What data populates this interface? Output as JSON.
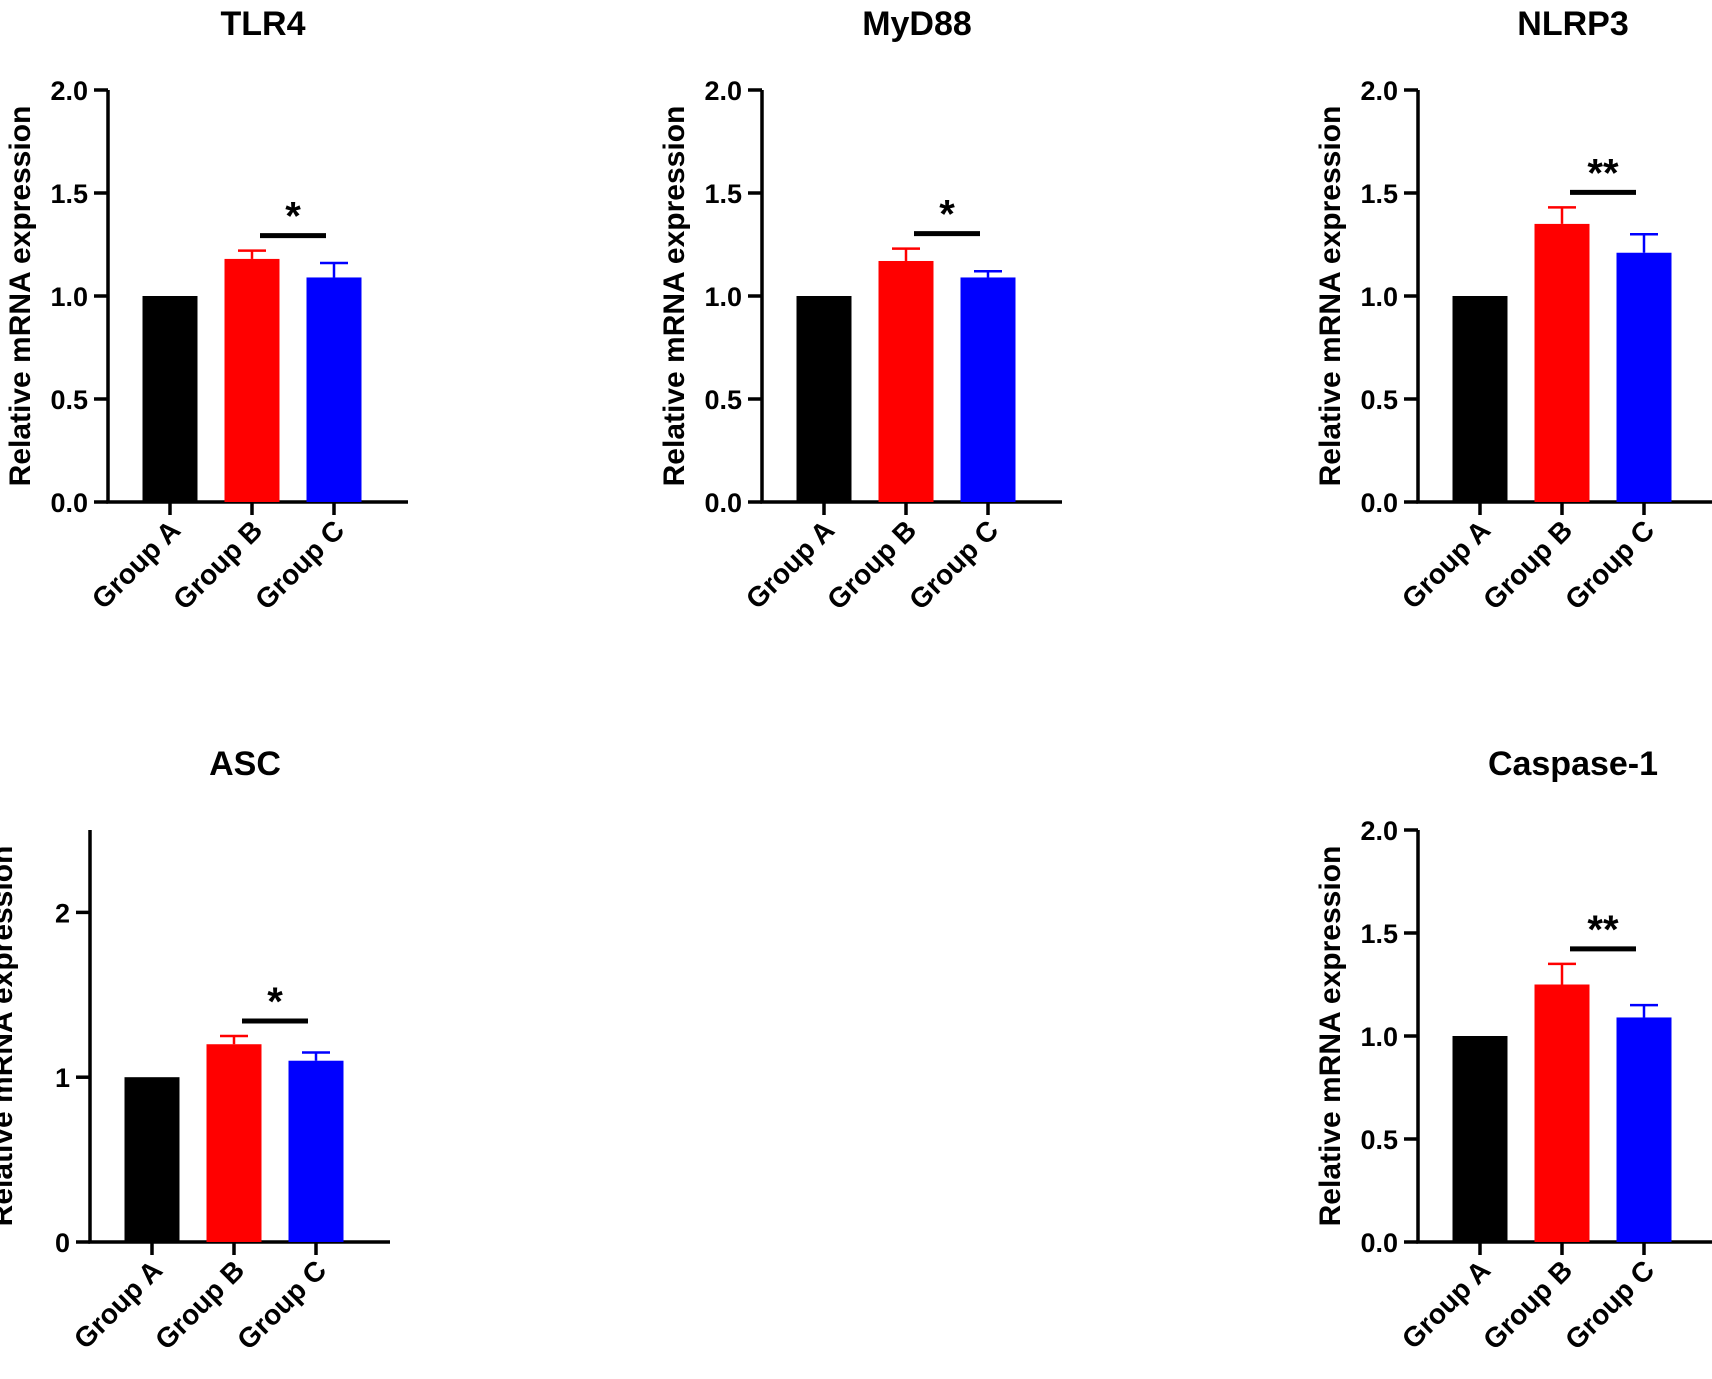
{
  "figure": {
    "background": "#ffffff",
    "axis_color": "#000000"
  },
  "chart_data": [
    {
      "type": "bar",
      "title": "TLR4",
      "ylabel": "Relative mRNA expression",
      "xlabel": "",
      "ylim": [
        0,
        2.0
      ],
      "yticks": [
        "0.0",
        "0.5",
        "1.0",
        "1.5",
        "2.0"
      ],
      "categories": [
        "Group A",
        "Group B",
        "Group C"
      ],
      "values": [
        1.0,
        1.18,
        1.09
      ],
      "errors": [
        0,
        0.04,
        0.07
      ],
      "colors": [
        "#000000",
        "#ff0000",
        "#0000ff"
      ],
      "significance": {
        "between": [
          1,
          2
        ],
        "label": "*"
      }
    },
    {
      "type": "bar",
      "title": "MyD88",
      "ylabel": "Relative mRNA expression",
      "xlabel": "",
      "ylim": [
        0,
        2.0
      ],
      "yticks": [
        "0.0",
        "0.5",
        "1.0",
        "1.5",
        "2.0"
      ],
      "categories": [
        "Group A",
        "Group B",
        "Group C"
      ],
      "values": [
        1.0,
        1.17,
        1.09
      ],
      "errors": [
        0,
        0.06,
        0.03
      ],
      "colors": [
        "#000000",
        "#ff0000",
        "#0000ff"
      ],
      "significance": {
        "between": [
          1,
          2
        ],
        "label": "*"
      }
    },
    {
      "type": "bar",
      "title": "NLRP3",
      "ylabel": "Relative mRNA expression",
      "xlabel": "",
      "ylim": [
        0,
        2.0
      ],
      "yticks": [
        "0.0",
        "0.5",
        "1.0",
        "1.5",
        "2.0"
      ],
      "categories": [
        "Group A",
        "Group B",
        "Group C"
      ],
      "values": [
        1.0,
        1.35,
        1.21
      ],
      "errors": [
        0,
        0.08,
        0.09
      ],
      "colors": [
        "#000000",
        "#ff0000",
        "#0000ff"
      ],
      "significance": {
        "between": [
          1,
          2
        ],
        "label": "**"
      }
    },
    {
      "type": "bar",
      "title": "ASC",
      "ylabel": "Relative mRNA expression",
      "xlabel": "",
      "ylim": [
        0,
        2.5
      ],
      "yticks": [
        "0",
        "1",
        "2"
      ],
      "categories": [
        "Group A",
        "Group B",
        "Group C"
      ],
      "values": [
        1.0,
        1.2,
        1.1
      ],
      "errors": [
        0,
        0.05,
        0.05
      ],
      "colors": [
        "#000000",
        "#ff0000",
        "#0000ff"
      ],
      "significance": {
        "between": [
          1,
          2
        ],
        "label": "*"
      }
    },
    {
      "type": "bar",
      "title": "Caspase-1",
      "ylabel": "Relative mRNA expression",
      "xlabel": "",
      "ylim": [
        0,
        2.0
      ],
      "yticks": [
        "0.0",
        "0.5",
        "1.0",
        "1.5",
        "2.0"
      ],
      "categories": [
        "Group A",
        "Group B",
        "Group C"
      ],
      "values": [
        1.0,
        1.25,
        1.09
      ],
      "errors": [
        0,
        0.1,
        0.06
      ],
      "colors": [
        "#000000",
        "#ff0000",
        "#0000ff"
      ],
      "significance": {
        "between": [
          1,
          2
        ],
        "label": "**"
      }
    }
  ]
}
